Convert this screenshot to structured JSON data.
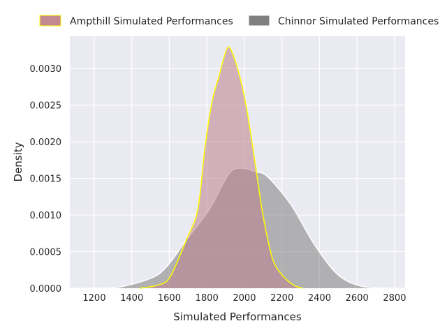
{
  "chart_data": {
    "type": "area",
    "title": "",
    "xlabel": "Simulated Performances",
    "ylabel": "Density",
    "xlim": [
      1070,
      2856
    ],
    "ylim": [
      0,
      0.00344
    ],
    "xticks": [
      1200,
      1400,
      1600,
      1800,
      2000,
      2200,
      2400,
      2600,
      2800
    ],
    "yticks": [
      0,
      0.0005,
      0.001,
      0.0015,
      0.002,
      0.0025,
      0.003
    ],
    "ytick_labels": [
      "0.0000",
      "0.0005",
      "0.0010",
      "0.0015",
      "0.0020",
      "0.0025",
      "0.0030"
    ],
    "grid": true,
    "background": "#eaeaf2",
    "legend_placement": "top, outside",
    "series": [
      {
        "name": "Chinnor Simulated Performances",
        "fill": "#808080",
        "edge": "#ffffff",
        "legend_color": "#808080",
        "x": [
          1145,
          1319,
          1505,
          1591,
          1691,
          1814,
          1914,
          1975,
          2062,
          2124,
          2248,
          2372,
          2496,
          2620,
          2781
        ],
        "y": [
          0,
          1e-05,
          0.00014,
          0.00031,
          0.00066,
          0.00108,
          0.00155,
          0.00164,
          0.00159,
          0.00152,
          0.00114,
          0.0006,
          0.00019,
          3e-05,
          0
        ]
      },
      {
        "name": "Ampthill Simulated Performances",
        "fill": "#bc7f8c",
        "edge": "#ffff00",
        "legend_color": "#c48a92",
        "x": [
          1443,
          1542,
          1604,
          1691,
          1752,
          1790,
          1827,
          1864,
          1907,
          1938,
          1988,
          2025,
          2062,
          2100,
          2149,
          2198,
          2260,
          2310
        ],
        "y": [
          0,
          4.5e-05,
          0.000155,
          0.00066,
          0.00108,
          0.00193,
          0.00254,
          0.00289,
          0.00327,
          0.0032,
          0.00276,
          0.00225,
          0.00162,
          0.00098,
          0.00041,
          0.00019,
          4.5e-05,
          0
        ]
      }
    ]
  }
}
